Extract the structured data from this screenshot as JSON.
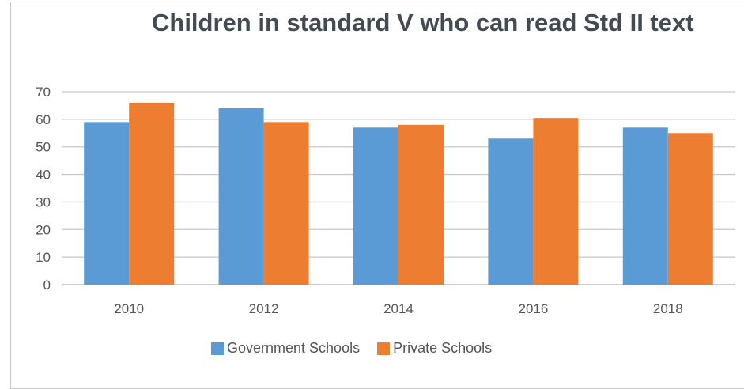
{
  "chart_data": {
    "type": "bar",
    "title": "Children in standard V who can read Std II text",
    "categories": [
      "2010",
      "2012",
      "2014",
      "2016",
      "2018"
    ],
    "series": [
      {
        "name": "Government Schools",
        "color": "#5b9bd5",
        "values": [
          59,
          64,
          57,
          53,
          57
        ]
      },
      {
        "name": "Private Schools",
        "color": "#ed7d31",
        "values": [
          66,
          59,
          58,
          60.5,
          55
        ]
      }
    ],
    "ylim": [
      0,
      70
    ],
    "yticks": [
      0,
      10,
      20,
      30,
      40,
      50,
      60,
      70
    ],
    "grid": true,
    "legend": "bottom"
  }
}
